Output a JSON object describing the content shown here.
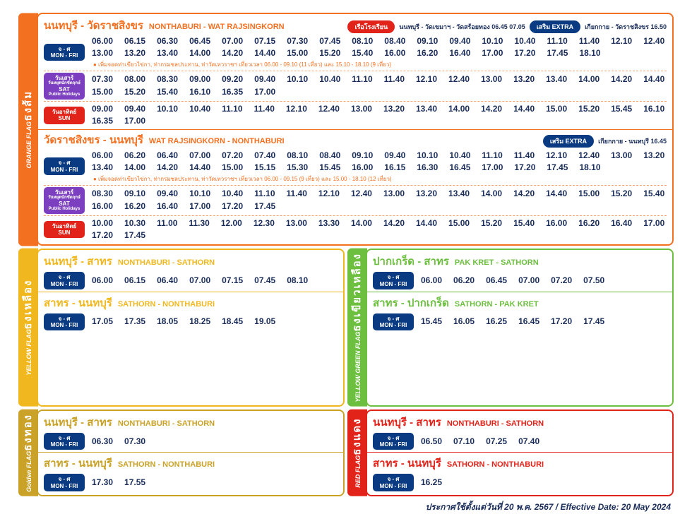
{
  "flags": {
    "orange": {
      "th": "ธงส้ม",
      "en": "ORANGE FLAG"
    },
    "yellow": {
      "th": "ธงเหลือง",
      "en": "YELLOW FLAG"
    },
    "gold": {
      "th": "ธงทอง",
      "en": "Golden FLAG"
    },
    "green": {
      "th": "ธงเขียวเหลือง",
      "en": "YELLOW GREEN FLAG"
    },
    "red": {
      "th": "ธงแดง",
      "en": "RED FLAG"
    }
  },
  "pills": {
    "monfri": {
      "th": "จ - ศ",
      "en": "MON - FRI"
    },
    "sat": {
      "l1": "วันเสาร์",
      "l2": "วันหยุดนักขัตฤกษ์",
      "l3": "SAT",
      "l4": "Public Holidays"
    },
    "sun": {
      "th": "วันอาทิตย์",
      "en": "SUN"
    }
  },
  "orange": {
    "r1": {
      "th": "นนทบุรี - วัดราชสิงขร",
      "en": "NONTHABURI - WAT RAJSINGKORN",
      "school": {
        "label": "เรือโรงเรียน",
        "note": "นนทบุรี - วัดเขมาฯ - วัดสร้อยทอง 06.45  07.05"
      },
      "extra": {
        "label": "เสริม EXTRA",
        "note": "เกียกกาย - วัดราชสิงขร 16.50"
      },
      "mf": "06.00 06.15 06.30 06.45 07.00 07.15 07.30 07.45 08.10 08.40 09.10 09.40 10.10 10.40 11.10 11.40 12.10 12.40 13.00 13.20 13.40 14.00 14.20 14.40 15.00 15.20 15.40 16.00 16.20 16.40 17.00 17.20 17.45 18.10",
      "mfnote": "● เพิ่มจอดท่าเขียวไข่กา, ท่ากรมชลประทาน, ท่าวัดเทวราชฯ เที่ยวเวลา 06.00 - 09.10 (11 เที่ยว) และ 15.10 - 18.10 (9 เที่ยว)",
      "sa": "07.30 08.00 08.30 09.00 09.20 09.40 10.10 10.40 11.10 11.40 12.10 12.40 13.00 13.20 13.40 14.00 14.20 14.40 15.00 15.20 15.40 16.10 16.35 17.00",
      "su": "09.00 09.40 10.10 10.40 11.10 11.40 12.10 12.40 13.00 13.20 13.40 14.00 14.20 14.40 15.00 15.20 15.45 16.10 16.35 17.00"
    },
    "r2": {
      "th": "วัดราชสิงขร - นนทบุรี",
      "en": "WAT RAJSINGKORN - NONTHABURI",
      "extra": {
        "label": "เสริม EXTRA",
        "note": "เกียกกาย - นนทบุรี 16.45"
      },
      "mf": "06.00 06.20 06.40 07.00 07.20 07.40 08.10 08.40 09.10 09.40 10.10 10.40 11.10 11.40 12.10 12.40 13.00 13.20 13.40 14.00 14.20 14.40 15.00 15.15 15.30 15.45 16.00 16.15 16.30 16.45 17.00 17.20 17.45 18.10",
      "mfnote": "● เพิ่มจอดท่าเขียวไข่กา, ท่ากรมชลประทาน, ท่าวัดเทวราชฯ เที่ยวเวลา 06.00 - 09.15 (9 เที่ยว) และ 15.00 - 18.10 (12 เที่ยว)",
      "sa": "08.30 09.10 09.40 10.10 10.40 11.10 11.40 12.10 12.40 13.00 13.20 13.40 14.00 14.20 14.40 15.00 15.20 15.40 16.00 16.20 16.40 17.00 17.20 17.45",
      "su": "10.00 10.30 11.00 11.30 12.00 12.30 13.00 13.30 14.00 14.20 14.40 15.00 15.20 15.40 16.00 16.20 16.40 17.00 17.20 17.45"
    }
  },
  "yellow": {
    "r1": {
      "th": "นนทบุรี - สาทร",
      "en": "NONTHABURI - SATHORN",
      "mf": "06.00 06.15 06.40 07.00 07.15 07.45 08.10"
    },
    "r2": {
      "th": "สาทร - นนทบุรี",
      "en": "SATHORN - NONTHABURI",
      "mf": "17.05 17.35 18.05 18.25 18.45 19.05"
    }
  },
  "gold": {
    "r1": {
      "th": "นนทบุรี - สาทร",
      "en": "NONTHABURI - SATHORN",
      "mf": "06.30 07.30"
    },
    "r2": {
      "th": "สาทร - นนทบุรี",
      "en": "SATHORN - NONTHABURI",
      "mf": "17.30 17.55"
    }
  },
  "green": {
    "r1": {
      "th": "ปากเกร็ด - สาทร",
      "en": "PAK KRET - SATHORN",
      "mf": "06.00 06.20 06.45 07.00 07.20 07.50"
    },
    "r2": {
      "th": "สาทร - ปากเกร็ด",
      "en": "SATHORN - PAK KRET",
      "mf": "15.45 16.05 16.25 16.45 17.20 17.45"
    }
  },
  "red": {
    "r1": {
      "th": "นนทบุรี - สาทร",
      "en": "NONTHABURI - SATHORN",
      "mf": "06.50 07.10 07.25 07.40"
    },
    "r2": {
      "th": "สาทร - นนทบุรี",
      "en": "SATHORN - NONTHABURI",
      "mf": "16.25"
    }
  },
  "footer": "ประกาศใช้ตั้งแต่วันที่ 20 พ.ค. 2567 / Effective Date: 20 May 2024"
}
